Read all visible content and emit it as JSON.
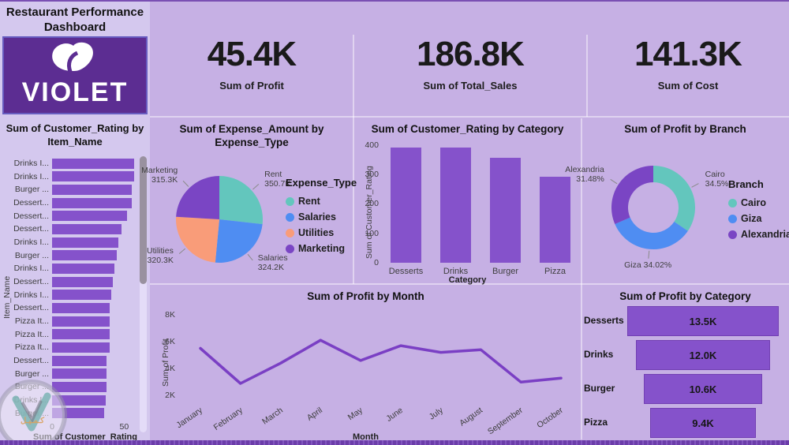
{
  "dashboard": {
    "title": "Restaurant Performance Dashboard",
    "logo_text": "VIOLET"
  },
  "kpis": [
    {
      "value": "45.4K",
      "label": "Sum of Profit"
    },
    {
      "value": "186.8K",
      "label": "Sum of Total_Sales"
    },
    {
      "value": "141.3K",
      "label": "Sum of Cost"
    }
  ],
  "watermark": {
    "text": "كـمـيـل"
  },
  "colors": {
    "accent_purple": "#8552cb",
    "teal": "#63c6bd",
    "blue": "#4f8df2",
    "salmon": "#f99c79",
    "deep_purple": "#7a45c4",
    "line_purple": "#7a3fc4",
    "logo_bg": "#5c2d92",
    "left_bg": "#d4c8ee",
    "main_bg": "#c6b0e4"
  },
  "chart_data": [
    {
      "id": "item_rating",
      "type": "bar",
      "orientation": "horizontal",
      "title": "Sum of Customer_Rating by Item_Name",
      "xlabel": "Sum of Customer_Rating",
      "ylabel": "Item_Name",
      "xticks": [
        0,
        50
      ],
      "xlim": [
        0,
        58
      ],
      "bar_color": "#8552cb",
      "categories": [
        "Drinks I...",
        "Drinks I...",
        "Burger ...",
        "Dessert...",
        "Dessert...",
        "Dessert...",
        "Drinks I...",
        "Burger ...",
        "Drinks I...",
        "Dessert...",
        "Drinks I...",
        "Dessert...",
        "Pizza It...",
        "Pizza It...",
        "Pizza It...",
        "Dessert...",
        "Burger ...",
        "Burger ...",
        "Drinks I...",
        "Burger ..."
      ],
      "values": [
        57,
        57,
        55,
        55,
        52,
        48,
        46,
        45,
        43,
        42,
        41,
        40,
        40,
        40,
        40,
        38,
        38,
        38,
        37,
        36
      ]
    },
    {
      "id": "expense_pie",
      "type": "pie",
      "title": "Sum of Expense_Amount by Expense_Type",
      "legend_title": "Expense_Type",
      "slices": [
        {
          "label": "Rent",
          "value": 350.7,
          "display": "350.7K",
          "color": "#63c6bd"
        },
        {
          "label": "Salaries",
          "value": 324.2,
          "display": "324.2K",
          "color": "#4f8df2"
        },
        {
          "label": "Utilities",
          "value": 320.3,
          "display": "320.3K",
          "color": "#f99c79"
        },
        {
          "label": "Marketing",
          "value": 315.3,
          "display": "315.3K",
          "color": "#7a45c4"
        }
      ]
    },
    {
      "id": "category_rating",
      "type": "bar",
      "orientation": "vertical",
      "title": "Sum of Customer_Rating by Category",
      "xlabel": "Category",
      "ylabel": "Sum of Customer_Rating",
      "yticks": [
        0,
        100,
        200,
        300,
        400
      ],
      "ylim": [
        0,
        410
      ],
      "bar_color": "#8552cb",
      "categories": [
        "Desserts",
        "Drinks",
        "Burger",
        "Pizza"
      ],
      "values": [
        392,
        390,
        357,
        291
      ]
    },
    {
      "id": "branch_profit",
      "type": "donut",
      "title": "Sum of Profit by Branch",
      "legend_title": "Branch",
      "slices": [
        {
          "label": "Cairo",
          "value": 34.5,
          "display": "34.5%",
          "color": "#63c6bd"
        },
        {
          "label": "Giza",
          "value": 34.02,
          "display": "34.02%",
          "color": "#4f8df2"
        },
        {
          "label": "Alexandria",
          "value": 31.48,
          "display": "31.48%",
          "color": "#7a45c4"
        }
      ]
    },
    {
      "id": "month_profit",
      "type": "line",
      "title": "Sum of Profit by Month",
      "xlabel": "Month",
      "ylabel": "Sum of Profit",
      "color": "#7a3fc4",
      "ylim": [
        1.5,
        8.8
      ],
      "yticks": [
        {
          "v": 2,
          "label": "2K"
        },
        {
          "v": 4,
          "label": "4K"
        },
        {
          "v": 6,
          "label": "6K"
        },
        {
          "v": 8,
          "label": "8K"
        }
      ],
      "x": [
        "January",
        "February",
        "March",
        "April",
        "May",
        "June",
        "July",
        "August",
        "September",
        "October"
      ],
      "values": [
        5.5,
        2.9,
        4.4,
        6.1,
        4.6,
        5.7,
        5.2,
        5.4,
        3.0,
        3.3
      ]
    },
    {
      "id": "category_profit",
      "type": "funnel",
      "title": "Sum of Profit by Category",
      "bar_color": "#8552cb",
      "categories": [
        "Desserts",
        "Drinks",
        "Burger",
        "Pizza"
      ],
      "values": [
        13.5,
        12.0,
        10.6,
        9.4
      ],
      "labels": [
        "13.5K",
        "12.0K",
        "10.6K",
        "9.4K"
      ]
    }
  ]
}
